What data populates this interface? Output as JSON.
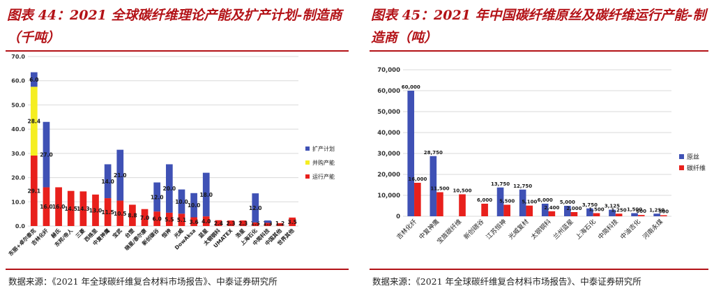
{
  "left": {
    "title": "图表 44：2021 全球碳纤维理论产能及扩产计划-制造商（千吨）",
    "source": "数据来源：《2021 年全球碳纤维复合材料市场报告》、中泰证券研究所"
  },
  "right": {
    "title": "图表 45：2021 年中国碳纤维原丝及碳纤维运行产能-制造商（吨）",
    "source": "数据来源：《2021 年全球碳纤维复合材料市场报告》、中泰证券研究所"
  },
  "colors": {
    "red": "#e8201c",
    "yellow": "#f5ee22",
    "blue": "#3f51b5",
    "title": "#b31217"
  },
  "chart_data": [
    {
      "type": "bar",
      "stacked": true,
      "categories": [
        "东丽+卓尔泰克",
        "吉林化纤",
        "赫氏",
        "东邦/帝人",
        "三菱",
        "西格里",
        "中复神鹰",
        "宝武",
        "台塑",
        "晓星/泰尔康",
        "新创碳谷",
        "恒神",
        "光威",
        "DowAksa",
        "蓝星",
        "太钢钢科",
        "UMATEX",
        "浩星",
        "上海石化",
        "中简科技",
        "中国其他",
        "世界其他"
      ],
      "series": [
        {
          "name": "运行产能",
          "values": [
            29.1,
            16.0,
            16.0,
            14.5,
            14.3,
            13.0,
            11.5,
            10.5,
            8.8,
            7.0,
            6.0,
            5.5,
            5.1,
            3.6,
            4.0,
            2.4,
            2.3,
            2.3,
            1.5,
            1.3,
            1.2,
            3.5
          ],
          "labels": [
            "29.1",
            "16.0",
            "16.0",
            "14.5",
            "14.3",
            "13.0",
            "11.5",
            "10.5",
            "8.8",
            "7.0",
            "6.0",
            "5.5",
            "5.1",
            "3.6",
            "4.0",
            "2.4",
            "2.3",
            "2.3",
            "1.5",
            "1.3",
            "1.2",
            "3.5"
          ]
        },
        {
          "name": "并购产能",
          "values": [
            28.4,
            0,
            0,
            0,
            0,
            0,
            0,
            0,
            0,
            0,
            0,
            0,
            0,
            0,
            0,
            0,
            0,
            0,
            0,
            0,
            0,
            0
          ],
          "labels": [
            "28.4",
            "",
            "",
            "",
            "",
            "",
            "",
            "",
            "",
            "",
            "",
            "",
            "",
            "",
            "",
            "",
            "",
            "",
            "",
            "",
            "",
            ""
          ]
        },
        {
          "name": "扩产计划",
          "values": [
            6.0,
            27.0,
            0,
            0,
            0,
            0,
            14.0,
            21.0,
            0,
            0,
            12.0,
            20.0,
            10.0,
            10.0,
            18.0,
            0,
            0,
            0,
            12.0,
            1.0,
            0,
            0
          ],
          "labels": [
            "6.0",
            "27.0",
            "",
            "",
            "",
            "",
            "14.0",
            "21.0",
            "",
            "",
            "12.0",
            "20.0",
            "10.0",
            "10.0",
            "18.0",
            "",
            "",
            "",
            "12.0",
            "",
            "",
            ""
          ]
        }
      ],
      "yticks": [
        "0.0",
        "10.0",
        "20.0",
        "30.0",
        "40.0",
        "50.0",
        "60.0",
        "70.0"
      ],
      "ylim": [
        0,
        70
      ],
      "legend_position": "right"
    },
    {
      "type": "bar",
      "categories": [
        "吉林化纤",
        "中复神鹰",
        "宝旌碳纤维",
        "新创碳谷",
        "江苏恒神",
        "光威复材",
        "太钢钢科",
        "兰州蓝星",
        "上海石化",
        "中简科技",
        "中油吉化",
        "河南永煤"
      ],
      "series": [
        {
          "name": "原丝",
          "values": [
            60000,
            28750,
            0,
            0,
            13750,
            12750,
            6000,
            5000,
            3750,
            3125,
            1500,
            1250
          ],
          "labels": [
            "60,000",
            "28,750",
            "",
            "",
            "13,750",
            "12,750",
            "6,000",
            "5,000",
            "3,750",
            "3,125",
            "1,500",
            "1,250"
          ]
        },
        {
          "name": "碳纤维",
          "values": [
            16000,
            11500,
            10500,
            6000,
            5500,
            5100,
            2400,
            2000,
            1500,
            1250,
            600,
            500
          ],
          "labels": [
            "16,000",
            "11,500",
            "10,500",
            "6,000",
            "5,500",
            "5,100",
            "2,400",
            "2,000",
            "1,500",
            "1,250",
            "600",
            "500"
          ]
        }
      ],
      "yticks": [
        "0",
        "10,000",
        "20,000",
        "30,000",
        "40,000",
        "50,000",
        "60,000",
        "70,000"
      ],
      "ylim": [
        0,
        70000
      ],
      "legend_position": "right"
    }
  ]
}
